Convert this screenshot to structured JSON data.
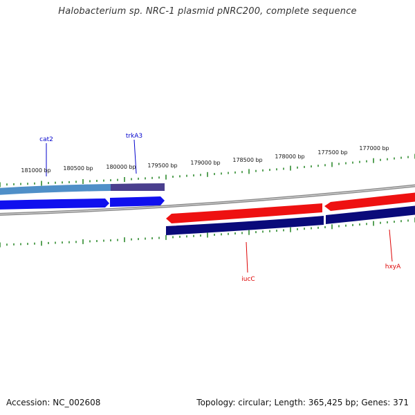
{
  "header": {
    "title": "Halobacterium sp. NRC-1 plasmid pNRC200, complete sequence"
  },
  "footer": {
    "accession": "Accession: NC_002608",
    "summary": "Topology: circular; Length: 365,425 bp; Genes: 371"
  },
  "colors": {
    "backbone": "#8a8a8a",
    "tick": "#2e8b2e",
    "forward_gene": "#1010ee",
    "reverse_gene": "#ee1111",
    "forward_cds": "#4f8fc8",
    "reverse_cds": "#0a0a7a",
    "label_forward": "#0000cc",
    "label_reverse": "#dd0000"
  },
  "scale_labels": [
    "181000 bp",
    "180500 bp",
    "180000 bp",
    "179500 bp",
    "179000 bp",
    "178500 bp",
    "178000 bp",
    "177500 bp",
    "177000 bp"
  ],
  "genes": [
    {
      "name": "cat2",
      "strand": "forward"
    },
    {
      "name": "trkA3",
      "strand": "forward"
    },
    {
      "name": "iucC",
      "strand": "reverse"
    },
    {
      "name": "hxyA",
      "strand": "reverse"
    }
  ]
}
